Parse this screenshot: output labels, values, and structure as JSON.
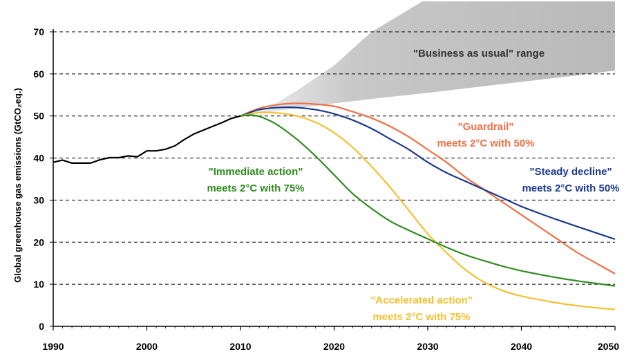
{
  "chart_data": {
    "type": "line",
    "ylabel": "Global greenhouse gas emissions (GtCO₂eq.)",
    "xlim": [
      1990,
      2050
    ],
    "ylim": [
      0,
      70
    ],
    "grid": true,
    "x_ticks": [
      "1990",
      "2000",
      "2010",
      "2020",
      "2030",
      "2040",
      "2050"
    ],
    "y_ticks": [
      "0",
      "10",
      "20",
      "30",
      "40",
      "50",
      "60",
      "70"
    ],
    "historical": {
      "color": "#000000",
      "points": [
        [
          1990,
          39
        ],
        [
          1991,
          39.5
        ],
        [
          1992,
          38.8
        ],
        [
          1993,
          38.8
        ],
        [
          1994,
          38.8
        ],
        [
          1995,
          39.6
        ],
        [
          1996,
          40.1
        ],
        [
          1997,
          40.1
        ],
        [
          1998,
          40.5
        ],
        [
          1999,
          40.3
        ],
        [
          2000,
          41.7
        ],
        [
          2001,
          41.7
        ],
        [
          2002,
          42.1
        ],
        [
          2003,
          42.9
        ],
        [
          2004,
          44.4
        ],
        [
          2005,
          45.7
        ],
        [
          2006,
          46.6
        ],
        [
          2007,
          47.5
        ],
        [
          2008,
          48.4
        ],
        [
          2009,
          49.4
        ],
        [
          2010,
          50
        ]
      ]
    },
    "range": {
      "label": "\"Business as usual\" range",
      "color": "#c8c8c8",
      "upper": [
        [
          2010,
          50
        ],
        [
          2013,
          52
        ],
        [
          2016,
          56
        ],
        [
          2020,
          62
        ],
        [
          2024,
          70
        ],
        [
          2027,
          74
        ],
        [
          2030,
          78
        ],
        [
          2050,
          78
        ]
      ],
      "lower": [
        [
          2010,
          50
        ],
        [
          2015,
          51.5
        ],
        [
          2020,
          53
        ],
        [
          2025,
          54.3
        ],
        [
          2030,
          55.5
        ],
        [
          2035,
          56.8
        ],
        [
          2040,
          58.1
        ],
        [
          2045,
          59.4
        ],
        [
          2050,
          60.8
        ]
      ]
    },
    "series": [
      {
        "color": "#ef7043",
        "label_lines": [
          "\"Guardrail\"",
          "meets 2°C with 50%"
        ],
        "points": [
          [
            2010,
            50
          ],
          [
            2012,
            51.8
          ],
          [
            2014,
            52.7
          ],
          [
            2016,
            53
          ],
          [
            2018,
            52.8
          ],
          [
            2020,
            52.3
          ],
          [
            2022,
            51
          ],
          [
            2024,
            49.5
          ],
          [
            2026,
            47.5
          ],
          [
            2028,
            45
          ],
          [
            2030,
            42
          ],
          [
            2032,
            39
          ],
          [
            2034,
            35.5
          ],
          [
            2036,
            32.5
          ],
          [
            2038,
            29.5
          ],
          [
            2040,
            26.5
          ],
          [
            2042,
            23.5
          ],
          [
            2044,
            20.5
          ],
          [
            2046,
            17.5
          ],
          [
            2048,
            15
          ],
          [
            2050,
            12.5
          ]
        ]
      },
      {
        "color": "#1b3a8f",
        "label_lines": [
          "\"Steady decline\"",
          "meets 2°C with 50%"
        ],
        "points": [
          [
            2010,
            50
          ],
          [
            2012,
            51.5
          ],
          [
            2014,
            52
          ],
          [
            2016,
            52
          ],
          [
            2018,
            51.5
          ],
          [
            2020,
            50.5
          ],
          [
            2022,
            49
          ],
          [
            2024,
            47
          ],
          [
            2026,
            44.5
          ],
          [
            2028,
            42
          ],
          [
            2030,
            39
          ],
          [
            2032,
            36.5
          ],
          [
            2034,
            34.5
          ],
          [
            2036,
            32.5
          ],
          [
            2038,
            30.5
          ],
          [
            2040,
            28.5
          ],
          [
            2042,
            26.8
          ],
          [
            2044,
            25.2
          ],
          [
            2046,
            23.7
          ],
          [
            2048,
            22.2
          ],
          [
            2050,
            20.7
          ]
        ]
      },
      {
        "color": "#f5c030",
        "label_lines": [
          "\"Accelerated action\"",
          "meets 2°C with 75%"
        ],
        "points": [
          [
            2010,
            50
          ],
          [
            2012,
            50.8
          ],
          [
            2014,
            50.7
          ],
          [
            2016,
            50
          ],
          [
            2018,
            48.5
          ],
          [
            2020,
            46
          ],
          [
            2022,
            42.5
          ],
          [
            2024,
            38
          ],
          [
            2026,
            33
          ],
          [
            2028,
            27.5
          ],
          [
            2030,
            22
          ],
          [
            2032,
            17.5
          ],
          [
            2034,
            13.5
          ],
          [
            2036,
            10.5
          ],
          [
            2038,
            8.5
          ],
          [
            2040,
            7.2
          ],
          [
            2042,
            6.3
          ],
          [
            2044,
            5.5
          ],
          [
            2046,
            4.9
          ],
          [
            2048,
            4.4
          ],
          [
            2050,
            4
          ]
        ]
      },
      {
        "color": "#2e8b1e",
        "label_lines": [
          "\"Immediate action\"",
          "meets 2°C with 75%"
        ],
        "points": [
          [
            2010,
            50
          ],
          [
            2011,
            50.2
          ],
          [
            2012,
            49.9
          ],
          [
            2013,
            49
          ],
          [
            2014,
            47.8
          ],
          [
            2016,
            44.5
          ],
          [
            2018,
            40.5
          ],
          [
            2020,
            36
          ],
          [
            2022,
            31.5
          ],
          [
            2024,
            28
          ],
          [
            2026,
            25
          ],
          [
            2028,
            22.8
          ],
          [
            2030,
            20.8
          ],
          [
            2032,
            18.8
          ],
          [
            2034,
            17
          ],
          [
            2036,
            15.6
          ],
          [
            2038,
            14.3
          ],
          [
            2040,
            13.2
          ],
          [
            2042,
            12.3
          ],
          [
            2044,
            11.5
          ],
          [
            2046,
            10.8
          ],
          [
            2048,
            10.2
          ],
          [
            2050,
            9.6
          ]
        ]
      }
    ]
  }
}
